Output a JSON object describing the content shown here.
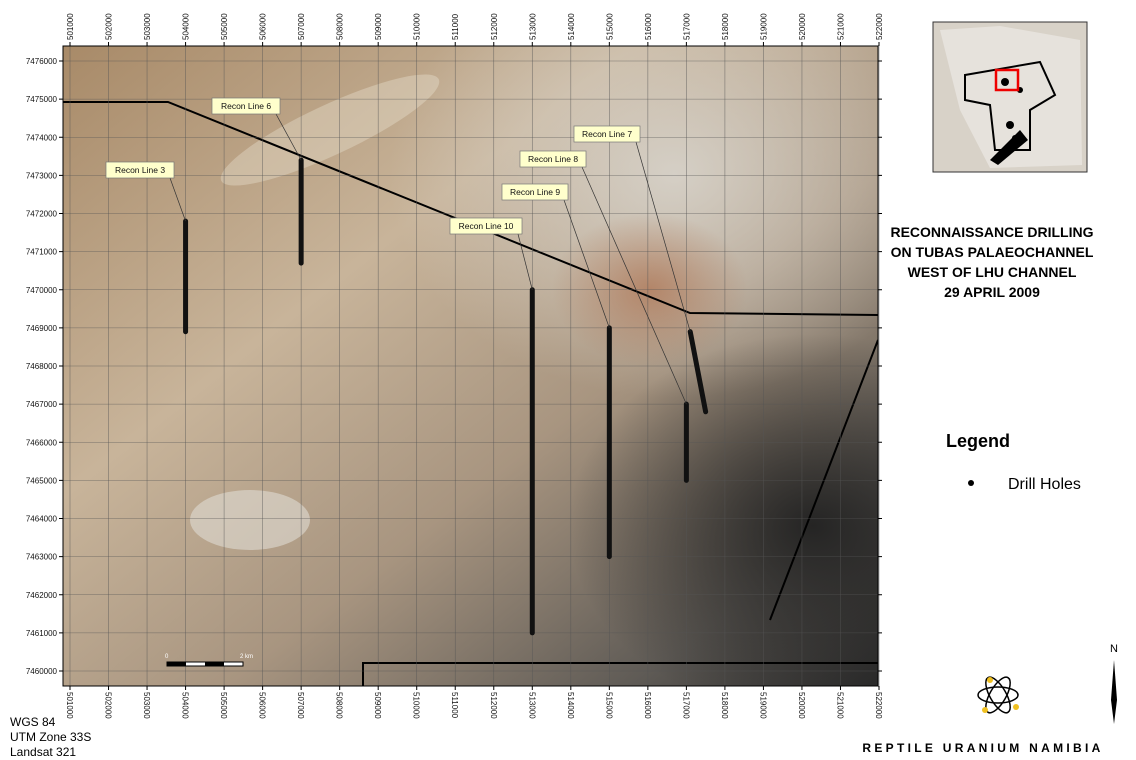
{
  "map": {
    "title": [
      "RECONNAISSANCE DRILLING",
      "ON TUBAS PALAEOCHANNEL",
      "WEST OF LHU CHANNEL",
      "29 APRIL 2009"
    ],
    "xticks": [
      501000,
      502000,
      503000,
      504000,
      505000,
      506000,
      507000,
      508000,
      509000,
      510000,
      511000,
      512000,
      513000,
      514000,
      515000,
      516000,
      517000,
      518000,
      519000,
      520000,
      521000,
      522000
    ],
    "yticks": [
      7460000,
      7461000,
      7462000,
      7463000,
      7464000,
      7465000,
      7466000,
      7467000,
      7468000,
      7469000,
      7470000,
      7471000,
      7472000,
      7473000,
      7474000,
      7475000,
      7476000
    ],
    "drill_lines": [
      {
        "label": "Recon Line 3",
        "easting": [
          504000,
          504000
        ],
        "northing": [
          7471800,
          7468900
        ]
      },
      {
        "label": "Recon Line 6",
        "easting": [
          507000,
          507000
        ],
        "northing": [
          7473400,
          7470700
        ]
      },
      {
        "label": "Recon Line 10",
        "easting": [
          513000,
          513000
        ],
        "northing": [
          7470000,
          7461000
        ]
      },
      {
        "label": "Recon Line 9",
        "easting": [
          515000,
          515000
        ],
        "northing": [
          7469000,
          7463000
        ]
      },
      {
        "label": "Recon Line 8",
        "easting": [
          517000,
          517000
        ],
        "northing": [
          7467000,
          7465000
        ]
      },
      {
        "label": "Recon Line 7",
        "easting": [
          517100,
          517500
        ],
        "northing": [
          7468900,
          7466800
        ]
      }
    ],
    "scale_bar": [
      "0",
      "2 km"
    ],
    "legend": {
      "title": "Legend",
      "item": "Drill Holes"
    },
    "footer": [
      "WGS 84",
      "UTM Zone 33S",
      "Landsat 321"
    ],
    "north": "N",
    "company": "REPTILE URANIUM NAMIBIA"
  }
}
